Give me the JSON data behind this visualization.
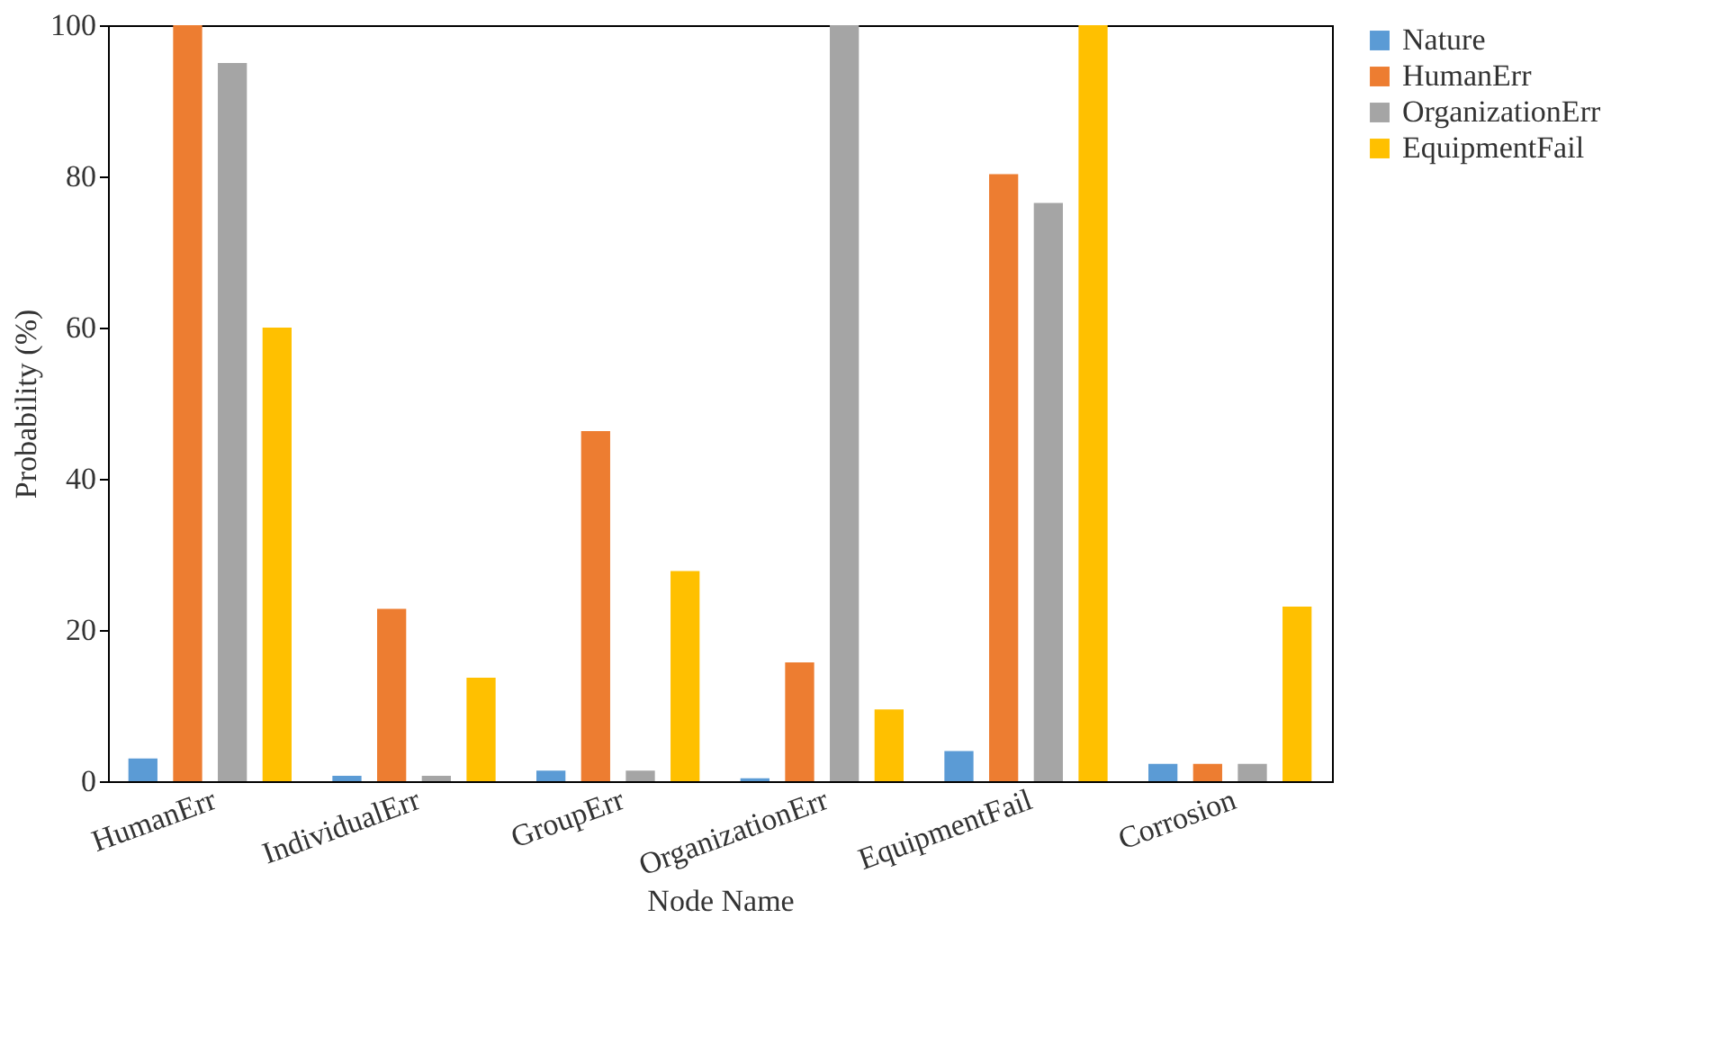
{
  "chart_data": {
    "type": "bar",
    "xlabel": "Node Name",
    "ylabel": "Probability (%)",
    "categories": [
      "HumanErr",
      "IndividualErr",
      "GroupErr",
      "OrganizationErr",
      "EquipmentFail",
      "Corrosion"
    ],
    "series": [
      {
        "name": "Nature",
        "color": "#5b9bd5",
        "values": [
          3,
          0.7,
          1.4,
          0.4,
          4,
          2.3
        ]
      },
      {
        "name": "HumanErr",
        "color": "#ed7d31",
        "values": [
          100,
          22.8,
          46.3,
          15.7,
          80.3,
          2.3
        ]
      },
      {
        "name": "OrganizationErr",
        "color": "#a5a5a5",
        "values": [
          95,
          0.7,
          1.4,
          100,
          76.5,
          2.3
        ]
      },
      {
        "name": "EquipmentFail",
        "color": "#ffc000",
        "values": [
          60,
          13.7,
          27.8,
          9.5,
          100,
          23.1
        ]
      }
    ],
    "ylim": [
      0,
      100
    ],
    "yticks": [
      0,
      20,
      40,
      60,
      80,
      100
    ],
    "grid": false,
    "legend": "top right"
  }
}
